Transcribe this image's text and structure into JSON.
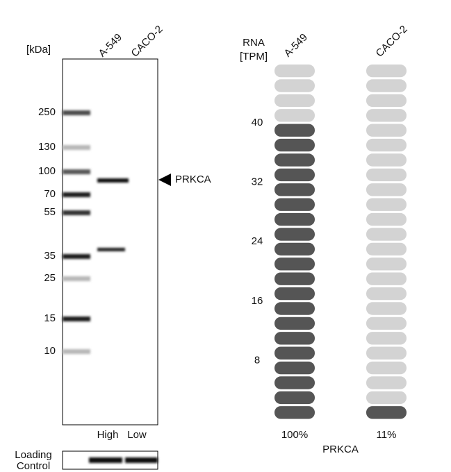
{
  "blot": {
    "unit_label": "[kDa]",
    "lanes": [
      "A-549",
      "CACO-2"
    ],
    "markers": [
      250,
      130,
      100,
      70,
      55,
      35,
      25,
      15,
      10
    ],
    "target": "PRKCA",
    "levels": [
      "High",
      "Low"
    ],
    "loading_control": [
      "Loading",
      "Control"
    ]
  },
  "rna": {
    "title": [
      "RNA",
      "[TPM]"
    ],
    "yticks": [
      8,
      16,
      24,
      32,
      40
    ],
    "samples": [
      {
        "name": "A-549",
        "segments": 20,
        "percent": "100%"
      },
      {
        "name": "CACO-2",
        "segments": 1,
        "percent": "11%"
      }
    ],
    "gene": "PRKCA"
  }
}
